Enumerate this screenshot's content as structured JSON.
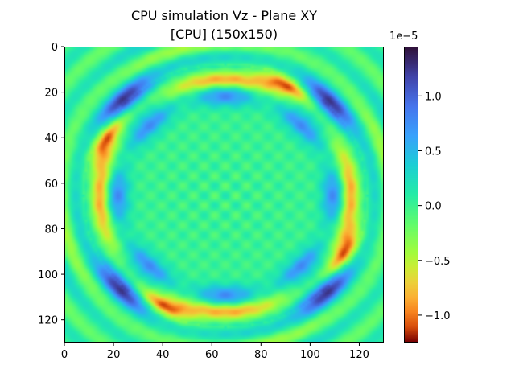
{
  "chart_data": {
    "type": "heatmap",
    "title": "CPU simulation Vz - Plane XY",
    "subtitle": "[CPU] (150x150)",
    "xlabel": "",
    "ylabel": "",
    "x_ticks": [
      0,
      20,
      40,
      60,
      80,
      100,
      120
    ],
    "y_ticks": [
      0,
      20,
      40,
      60,
      80,
      100,
      120
    ],
    "xlim": [
      0,
      130
    ],
    "ylim": [
      130,
      0
    ],
    "colorbar": {
      "offset_label": "1e−5",
      "ticks": [
        "1.0",
        "0.5",
        "0.0",
        "−0.5",
        "−1.0"
      ],
      "tick_values": [
        1.0,
        0.5,
        0.0,
        -0.5,
        -1.0
      ],
      "range": [
        -1.25,
        1.45
      ],
      "colormap": "turbo-reversed"
    },
    "grid": false
  }
}
